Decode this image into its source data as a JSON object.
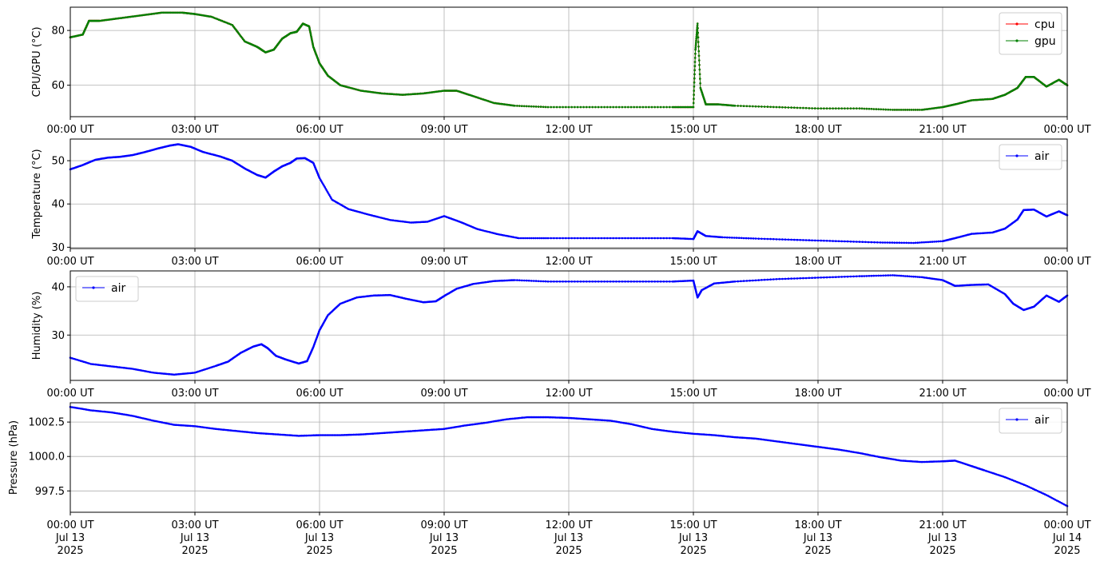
{
  "chart_data": [
    {
      "type": "line",
      "ylabel": "CPU/GPU (°C)",
      "xlim_hours": [
        0,
        24
      ],
      "ylim": [
        48.5,
        88.5
      ],
      "yticks": [
        60,
        80
      ],
      "ytick_labels": [
        "60",
        "80"
      ],
      "xtick_labels": [
        "00:00 UT",
        "03:00 UT",
        "06:00 UT",
        "09:00 UT",
        "12:00 UT",
        "15:00 UT",
        "18:00 UT",
        "21:00 UT",
        "00:00 UT"
      ],
      "grid": true,
      "legend": "top-right",
      "series": [
        {
          "name": "cpu",
          "color": "#ff0000",
          "x": [
            0,
            0.3,
            0.45,
            0.7,
            1.2,
            1.7,
            2.2,
            2.7,
            3.0,
            3.4,
            3.9,
            4.2,
            4.5,
            4.7,
            4.9,
            5.1,
            5.3,
            5.45,
            5.6,
            5.75,
            5.85,
            6.0,
            6.2,
            6.5,
            7.0,
            7.5,
            8.0,
            8.5,
            9.0,
            9.3,
            9.7,
            10.2,
            10.7,
            11.5,
            12.5,
            13.5,
            14.5,
            15.0,
            15.05,
            15.1,
            15.17,
            15.3,
            15.6,
            16.0,
            17.0,
            18.0,
            19.0,
            19.8,
            20.5,
            21.0,
            21.3,
            21.7,
            22.2,
            22.5,
            22.8,
            23.0,
            23.2,
            23.5,
            23.8,
            24.0
          ],
          "y": [
            77.5,
            78.5,
            83.5,
            83.5,
            84.5,
            85.5,
            86.5,
            86.5,
            86,
            85,
            82,
            76,
            74,
            72,
            73,
            77,
            79,
            79.5,
            82.5,
            81.5,
            74,
            68,
            63.5,
            60,
            58,
            57,
            56.5,
            57,
            58,
            58,
            56,
            53.5,
            52.5,
            52,
            52,
            52,
            52,
            52,
            73,
            82.5,
            59,
            53,
            53,
            52.5,
            52,
            51.5,
            51.5,
            51,
            51,
            52,
            53,
            54.5,
            55,
            56.5,
            59,
            63,
            63,
            59.5,
            62,
            60
          ]
        },
        {
          "name": "gpu",
          "color": "#008000",
          "x": [
            0,
            0.3,
            0.45,
            0.7,
            1.2,
            1.7,
            2.2,
            2.7,
            3.0,
            3.4,
            3.9,
            4.2,
            4.5,
            4.7,
            4.9,
            5.1,
            5.3,
            5.45,
            5.6,
            5.75,
            5.85,
            6.0,
            6.2,
            6.5,
            7.0,
            7.5,
            8.0,
            8.5,
            9.0,
            9.3,
            9.7,
            10.2,
            10.7,
            11.5,
            12.5,
            13.5,
            14.5,
            15.0,
            15.05,
            15.1,
            15.17,
            15.3,
            15.6,
            16.0,
            17.0,
            18.0,
            19.0,
            19.8,
            20.5,
            21.0,
            21.3,
            21.7,
            22.2,
            22.5,
            22.8,
            23.0,
            23.2,
            23.5,
            23.8,
            24.0
          ],
          "y": [
            77.5,
            78.5,
            83.5,
            83.5,
            84.5,
            85.5,
            86.5,
            86.5,
            86,
            85,
            82,
            76,
            74,
            72,
            73,
            77,
            79,
            79.5,
            82.5,
            81.5,
            74,
            68,
            63.5,
            60,
            58,
            57,
            56.5,
            57,
            58,
            58,
            56,
            53.5,
            52.5,
            52,
            52,
            52,
            52,
            52,
            73,
            82.5,
            59,
            53,
            53,
            52.5,
            52,
            51.5,
            51.5,
            51,
            51,
            52,
            53,
            54.5,
            55,
            56.5,
            59,
            63,
            63,
            59.5,
            62,
            60
          ]
        }
      ]
    },
    {
      "type": "line",
      "ylabel": "Temperature (°C)",
      "xlim_hours": [
        0,
        24
      ],
      "ylim": [
        29.7,
        55.0
      ],
      "yticks": [
        30,
        40,
        50
      ],
      "ytick_labels": [
        "30",
        "40",
        "50"
      ],
      "xtick_labels": [
        "00:00 UT",
        "03:00 UT",
        "06:00 UT",
        "09:00 UT",
        "12:00 UT",
        "15:00 UT",
        "18:00 UT",
        "21:00 UT",
        "00:00 UT"
      ],
      "grid": true,
      "legend": "top-right",
      "series": [
        {
          "name": "air",
          "color": "#0000ff",
          "x": [
            0,
            0.3,
            0.6,
            0.9,
            1.2,
            1.5,
            1.8,
            2.1,
            2.4,
            2.6,
            2.9,
            3.2,
            3.6,
            3.9,
            4.2,
            4.5,
            4.7,
            4.9,
            5.1,
            5.3,
            5.45,
            5.65,
            5.85,
            6.0,
            6.3,
            6.7,
            7.2,
            7.7,
            8.2,
            8.6,
            9.0,
            9.4,
            9.8,
            10.3,
            10.8,
            11.5,
            12.5,
            13.5,
            14.5,
            15.0,
            15.1,
            15.3,
            15.7,
            16.5,
            17.5,
            18.5,
            19.5,
            20.3,
            21.0,
            21.3,
            21.7,
            22.2,
            22.5,
            22.8,
            22.95,
            23.2,
            23.5,
            23.8,
            24.0
          ],
          "y": [
            48,
            49,
            50.2,
            50.7,
            50.9,
            51.3,
            52,
            52.8,
            53.5,
            53.8,
            53.2,
            52,
            51,
            50,
            48.2,
            46.7,
            46.1,
            47.5,
            48.7,
            49.5,
            50.5,
            50.6,
            49.5,
            46,
            41,
            38.8,
            37.5,
            36.3,
            35.7,
            35.9,
            37.2,
            35.8,
            34.2,
            33,
            32.1,
            32.1,
            32.1,
            32.1,
            32.1,
            31.9,
            33.7,
            32.6,
            32.3,
            32,
            31.7,
            31.4,
            31.1,
            31.0,
            31.4,
            32.1,
            33.1,
            33.4,
            34.3,
            36.4,
            38.6,
            38.7,
            37.1,
            38.3,
            37.4
          ]
        }
      ]
    },
    {
      "type": "line",
      "ylabel": "Humidity (%)",
      "xlim_hours": [
        0,
        24
      ],
      "ylim": [
        20.6,
        43.3
      ],
      "yticks": [
        30,
        40
      ],
      "ytick_labels": [
        "30",
        "40"
      ],
      "xtick_labels": [
        "00:00 UT",
        "03:00 UT",
        "06:00 UT",
        "09:00 UT",
        "12:00 UT",
        "15:00 UT",
        "18:00 UT",
        "21:00 UT",
        "00:00 UT"
      ],
      "grid": true,
      "legend": "top-left",
      "series": [
        {
          "name": "air",
          "color": "#0000ff",
          "x": [
            0,
            0.5,
            1.0,
            1.5,
            2.0,
            2.5,
            3.0,
            3.5,
            3.8,
            4.1,
            4.4,
            4.6,
            4.75,
            4.95,
            5.2,
            5.5,
            5.7,
            5.85,
            6.0,
            6.2,
            6.5,
            6.9,
            7.3,
            7.7,
            8.1,
            8.5,
            8.8,
            9.0,
            9.3,
            9.7,
            10.2,
            10.7,
            11.5,
            12.5,
            13.5,
            14.5,
            15.0,
            15.1,
            15.2,
            15.5,
            16.0,
            17.0,
            18.0,
            19.0,
            19.8,
            20.5,
            21.0,
            21.3,
            21.7,
            22.1,
            22.5,
            22.7,
            22.95,
            23.2,
            23.5,
            23.8,
            24.0
          ],
          "y": [
            25.3,
            24,
            23.5,
            23,
            22.2,
            21.8,
            22.2,
            23.6,
            24.5,
            26.3,
            27.6,
            28.1,
            27.3,
            25.7,
            24.9,
            24.1,
            24.6,
            27.5,
            31,
            34.1,
            36.5,
            37.8,
            38.2,
            38.3,
            37.5,
            36.8,
            37,
            38.1,
            39.6,
            40.6,
            41.2,
            41.4,
            41.1,
            41.1,
            41.1,
            41.1,
            41.3,
            37.8,
            39.3,
            40.7,
            41.1,
            41.6,
            41.9,
            42.2,
            42.4,
            42,
            41.4,
            40.2,
            40.4,
            40.5,
            38.5,
            36.5,
            35.2,
            35.9,
            38.2,
            36.9,
            38.2
          ]
        }
      ]
    },
    {
      "type": "line",
      "ylabel": "Pressure (hPa)",
      "xlim_hours": [
        0,
        24
      ],
      "ylim": [
        995.95,
        1003.9
      ],
      "yticks": [
        997.5,
        1000.0,
        1002.5
      ],
      "ytick_labels": [
        "997.5",
        "1000.0",
        "1002.5"
      ],
      "xtick_labels": [
        "00:00 UT\nJul 13\n2025",
        "03:00 UT\nJul 13\n2025",
        "06:00 UT\nJul 13\n2025",
        "09:00 UT\nJul 13\n2025",
        "12:00 UT\nJul 13\n2025",
        "15:00 UT\nJul 13\n2025",
        "18:00 UT\nJul 13\n2025",
        "21:00 UT\nJul 13\n2025",
        "00:00 UT\nJul 14\n2025"
      ],
      "grid": true,
      "legend": "top-right",
      "series": [
        {
          "name": "air",
          "color": "#0000ff",
          "x": [
            0,
            0.5,
            1.0,
            1.5,
            2.0,
            2.5,
            3.0,
            3.5,
            4.0,
            4.5,
            5.0,
            5.5,
            6.0,
            6.5,
            7.0,
            7.5,
            8.0,
            8.5,
            9.0,
            9.5,
            10.0,
            10.5,
            11.0,
            11.5,
            12.0,
            12.5,
            13.0,
            13.5,
            14.0,
            14.5,
            15.0,
            15.5,
            16.0,
            16.5,
            17.0,
            17.5,
            18.0,
            18.5,
            19.0,
            19.5,
            20.0,
            20.5,
            21.0,
            21.3,
            21.7,
            22.0,
            22.5,
            23.0,
            23.5,
            24.0
          ],
          "y": [
            1003.6,
            1003.35,
            1003.2,
            1002.95,
            1002.6,
            1002.3,
            1002.2,
            1002.0,
            1001.85,
            1001.7,
            1001.6,
            1001.5,
            1001.55,
            1001.55,
            1001.6,
            1001.7,
            1001.8,
            1001.9,
            1002.0,
            1002.25,
            1002.45,
            1002.7,
            1002.85,
            1002.85,
            1002.8,
            1002.7,
            1002.6,
            1002.35,
            1002.0,
            1001.8,
            1001.65,
            1001.55,
            1001.4,
            1001.3,
            1001.1,
            1000.9,
            1000.7,
            1000.5,
            1000.25,
            999.95,
            999.7,
            999.6,
            999.65,
            999.7,
            999.3,
            999.0,
            998.5,
            997.9,
            997.2,
            996.4
          ]
        }
      ]
    }
  ]
}
